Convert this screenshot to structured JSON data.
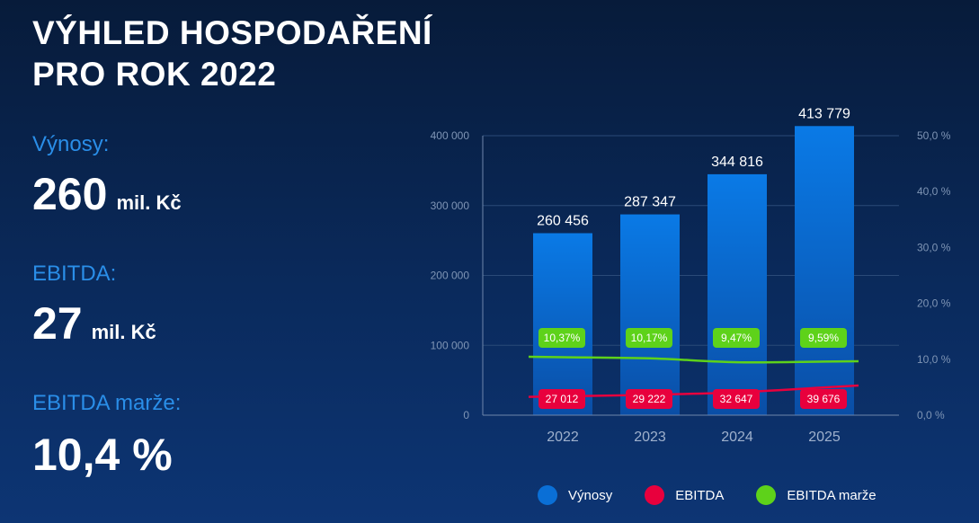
{
  "title": {
    "line1": "VÝHLED HOSPODAŘENÍ",
    "line2": "PRO ROK 2022"
  },
  "stats": {
    "revenue": {
      "label": "Výnosy:",
      "value": "260",
      "unit": "mil. Kč"
    },
    "ebitda": {
      "label": "EBITDA:",
      "value": "27",
      "unit": "mil. Kč"
    },
    "margin": {
      "label": "EBITDA marže:",
      "value": "10,4 %"
    }
  },
  "colors": {
    "revenue": "#0a6fd6",
    "ebitda": "#e8003d",
    "margin": "#5ed21a",
    "accent_text": "#2a8ee8"
  },
  "chart_data": {
    "type": "bar",
    "categories": [
      "2022",
      "2023",
      "2024",
      "2025"
    ],
    "series": [
      {
        "name": "Výnosy",
        "type": "bar",
        "axis": "left",
        "values": [
          260456,
          287347,
          344816,
          413779
        ],
        "labels": [
          "260 456",
          "287 347",
          "344 816",
          "413 779"
        ]
      },
      {
        "name": "EBITDA",
        "type": "line",
        "axis": "left",
        "values": [
          27012,
          29222,
          32647,
          39676
        ],
        "labels": [
          "27 012",
          "29 222",
          "32 647",
          "39 676"
        ]
      },
      {
        "name": "EBITDA marže",
        "type": "line",
        "axis": "right",
        "values": [
          10.37,
          10.17,
          9.47,
          9.59
        ],
        "labels": [
          "10,37%",
          "10,17%",
          "9,47%",
          "9,59%"
        ]
      }
    ],
    "y_left": {
      "range": [
        0,
        400000
      ],
      "ticks": [
        0,
        100000,
        200000,
        300000,
        400000
      ],
      "tick_labels": [
        "0",
        "100 000",
        "200 000",
        "300 000",
        "400 000"
      ]
    },
    "y_right": {
      "range": [
        0,
        50
      ],
      "ticks": [
        0,
        10,
        20,
        30,
        40,
        50
      ],
      "tick_labels": [
        "0,0 %",
        "10,0 %",
        "20,0 %",
        "30,0 %",
        "40,0 %",
        "50,0 %"
      ]
    },
    "grid": true,
    "legend_position": "bottom"
  }
}
